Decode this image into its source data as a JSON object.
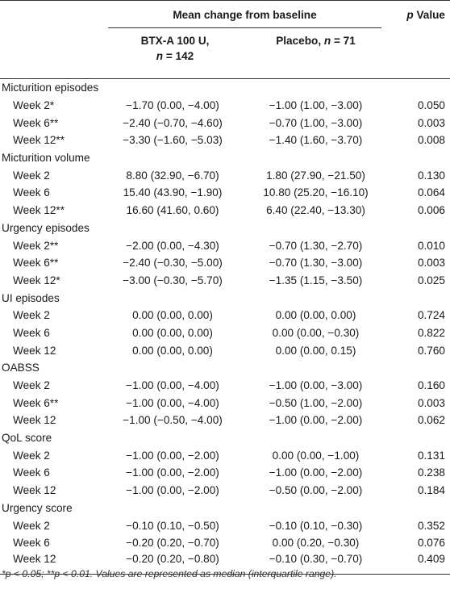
{
  "header": {
    "group_title": "Mean change from baseline",
    "p_label_italic": "p",
    "p_label_rest": " Value",
    "btx_line1": "BTX-A 100 U,",
    "btx_line2_n": "n",
    "btx_line2_rest": " = 142",
    "placebo_text": "Placebo, ",
    "placebo_n": "n",
    "placebo_rest": " = 71"
  },
  "sections": [
    {
      "title": "Micturition episodes",
      "rows": [
        {
          "label": "Week 2*",
          "btx": "−1.70 (0.00, −4.00)",
          "placebo": "−1.00 (1.00, −3.00)",
          "p": "0.050"
        },
        {
          "label": "Week 6**",
          "btx": "−2.40 (−0.70, −4.60)",
          "placebo": "−0.70 (1.00, −3.00)",
          "p": "0.003"
        },
        {
          "label": "Week 12**",
          "btx": "−3.30 (−1.60, −5.03)",
          "placebo": "−1.40 (1.60, −3.70)",
          "p": "0.008"
        }
      ]
    },
    {
      "title": "Micturition volume",
      "rows": [
        {
          "label": "Week 2",
          "btx": "8.80 (32.90, −6.70)",
          "placebo": "1.80 (27.90, −21.50)",
          "p": "0.130"
        },
        {
          "label": "Week 6",
          "btx": "15.40 (43.90, −1.90)",
          "placebo": "10.80 (25.20, −16.10)",
          "p": "0.064"
        },
        {
          "label": "Week 12**",
          "btx": "16.60 (41.60, 0.60)",
          "placebo": "6.40 (22.40, −13.30)",
          "p": "0.006"
        }
      ]
    },
    {
      "title": "Urgency episodes",
      "rows": [
        {
          "label": "Week 2**",
          "btx": "−2.00 (0.00, −4.30)",
          "placebo": "−0.70 (1.30, −2.70)",
          "p": "0.010"
        },
        {
          "label": "Week 6**",
          "btx": "−2.40 (−0.30, −5.00)",
          "placebo": "−0.70 (1.30, −3.00)",
          "p": "0.003"
        },
        {
          "label": "Week 12*",
          "btx": "−3.00 (−0.30, −5.70)",
          "placebo": "−1.35 (1.15, −3.50)",
          "p": "0.025"
        }
      ]
    },
    {
      "title": "UI episodes",
      "rows": [
        {
          "label": "Week 2",
          "btx": "0.00 (0.00, 0.00)",
          "placebo": "0.00 (0.00, 0.00)",
          "p": "0.724"
        },
        {
          "label": "Week 6",
          "btx": "0.00 (0.00, 0.00)",
          "placebo": "0.00 (0.00, −0.30)",
          "p": "0.822"
        },
        {
          "label": "Week 12",
          "btx": "0.00 (0.00, 0.00)",
          "placebo": "0.00 (0.00, 0.15)",
          "p": "0.760"
        }
      ]
    },
    {
      "title": "OABSS",
      "rows": [
        {
          "label": "Week 2",
          "btx": "−1.00 (0.00, −4.00)",
          "placebo": "−1.00 (0.00, −3.00)",
          "p": "0.160"
        },
        {
          "label": "Week 6**",
          "btx": "−1.00 (0.00, −4.00)",
          "placebo": "−0.50 (1.00, −2.00)",
          "p": "0.003"
        },
        {
          "label": "Week 12",
          "btx": "−1.00 (−0.50, −4.00)",
          "placebo": "−1.00 (0.00, −2.00)",
          "p": "0.062"
        }
      ]
    },
    {
      "title": "QoL score",
      "rows": [
        {
          "label": "Week 2",
          "btx": "−1.00 (0.00, −2.00)",
          "placebo": "0.00 (0.00, −1.00)",
          "p": "0.131"
        },
        {
          "label": "Week 6",
          "btx": "−1.00 (0.00, −2.00)",
          "placebo": "−1.00 (0.00, −2.00)",
          "p": "0.238"
        },
        {
          "label": "Week 12",
          "btx": "−1.00 (0.00, −2.00)",
          "placebo": "−0.50 (0.00, −2.00)",
          "p": "0.184"
        }
      ]
    },
    {
      "title": "Urgency score",
      "rows": [
        {
          "label": "Week 2",
          "btx": "−0.10 (0.10, −0.50)",
          "placebo": "−0.10 (0.10, −0.30)",
          "p": "0.352"
        },
        {
          "label": "Week 6",
          "btx": "−0.20 (0.20, −0.70)",
          "placebo": "0.00 (0.20, −0.30)",
          "p": "0.076"
        },
        {
          "label": "Week 12",
          "btx": "−0.20 (0.20, −0.80)",
          "placebo": "−0.10 (0.30, −0.70)",
          "p": "0.409"
        }
      ]
    }
  ],
  "footnote": "*p < 0.05; **p < 0.01. Values are represented as median (interquartile range)."
}
